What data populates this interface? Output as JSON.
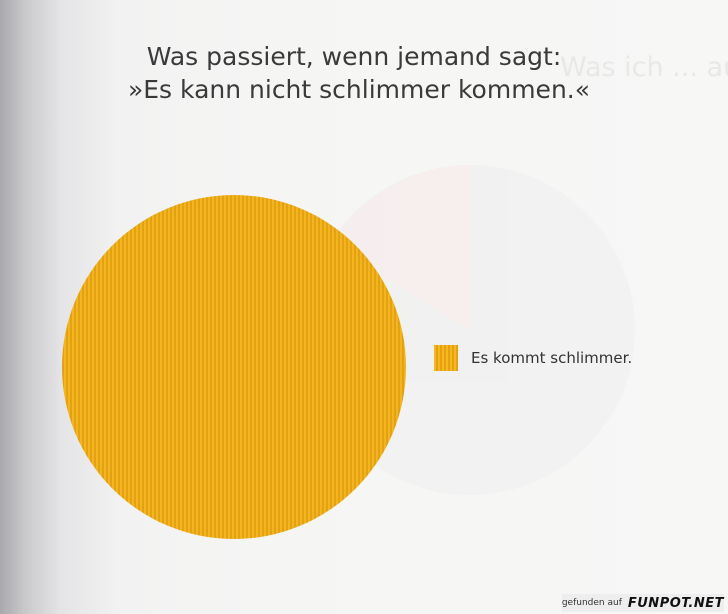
{
  "page": {
    "title_line1": "Was passiert, wenn jemand sagt:",
    "title_line2": "»Es kann nicht schlimmer kommen.«",
    "bleed_text": "Was ich ... aus ist"
  },
  "chart_data": {
    "type": "pie",
    "title": "Was passiert, wenn jemand sagt: »Es kann nicht schlimmer kommen.«",
    "slices": [
      {
        "label": "Es kommt schlimmer.",
        "value": 100,
        "color": "#f3b21c"
      }
    ],
    "legend": {
      "position": "right",
      "entries": [
        "Es kommt schlimmer."
      ]
    }
  },
  "credit": {
    "prefix": "gefunden auf",
    "brand": "FUNPOT.NET"
  }
}
